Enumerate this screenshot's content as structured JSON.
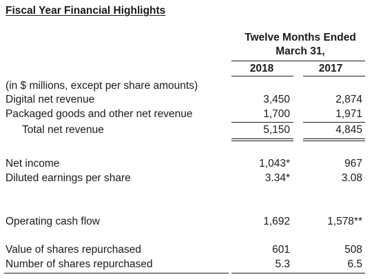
{
  "title": "Fiscal Year Financial Highlights",
  "header": {
    "line1": "Twelve Months Ended",
    "line2": "March 31,",
    "years": [
      "2018",
      "2017"
    ]
  },
  "note": "(in $ millions, except per share amounts)",
  "rows": [
    {
      "label": "Digital net revenue",
      "v2018": "3,450",
      "v2017": "2,874"
    },
    {
      "label": "Packaged goods and other net revenue",
      "v2018": "1,700",
      "v2017": "1,971"
    },
    {
      "label": "Total net revenue",
      "v2018": "5,150",
      "v2017": "4,845"
    },
    {
      "label": "Net income",
      "v2018": "1,043*",
      "v2017": "967"
    },
    {
      "label": "Diluted earnings per share",
      "v2018": "3.34*",
      "v2017": "3.08"
    },
    {
      "label": "Operating cash flow",
      "v2018": "1,692",
      "v2017": "1,578**"
    },
    {
      "label": "Value of shares repurchased",
      "v2018": "601",
      "v2017": "508"
    },
    {
      "label": "Number of shares repurchased",
      "v2018": "5.3",
      "v2017": "6.5"
    }
  ]
}
